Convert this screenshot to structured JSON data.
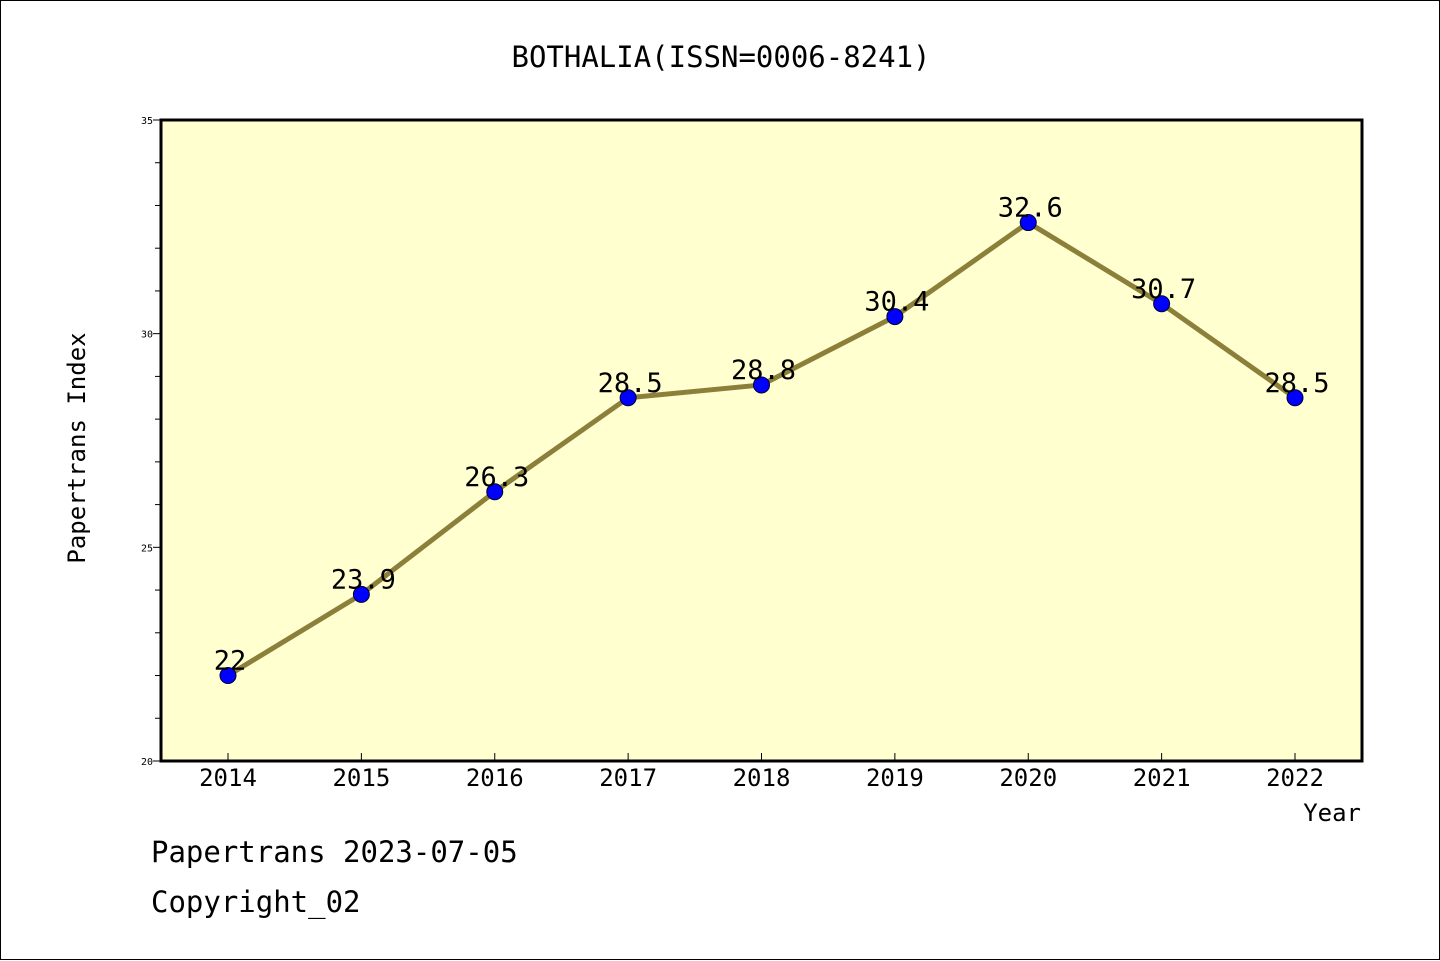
{
  "colors": {
    "plot_background": "#ffffd0",
    "line": "#8c7f3a",
    "marker": "#0000ff",
    "axis": "#000000"
  },
  "chart_data": {
    "type": "line",
    "title": "BOTHALIA(ISSN=0006-8241)",
    "xlabel": "Year",
    "ylabel": "Papertrans Index",
    "categories": [
      "2014",
      "2015",
      "2016",
      "2017",
      "2018",
      "2019",
      "2020",
      "2021",
      "2022"
    ],
    "values": [
      22,
      23.9,
      26.3,
      28.5,
      28.8,
      30.4,
      32.6,
      30.7,
      28.5
    ],
    "data_labels": [
      "22",
      "23.9",
      "26.3",
      "28.5",
      "28.8",
      "30.4",
      "32.6",
      "30.7",
      "28.5"
    ],
    "ylim": [
      20,
      35
    ],
    "yticks_major": [
      "20",
      "25",
      "30",
      "35"
    ],
    "grid": false,
    "legend": "none"
  },
  "footer": {
    "source_line": "Papertrans 2023-07-05",
    "copyright_line": "Copyright_02"
  }
}
